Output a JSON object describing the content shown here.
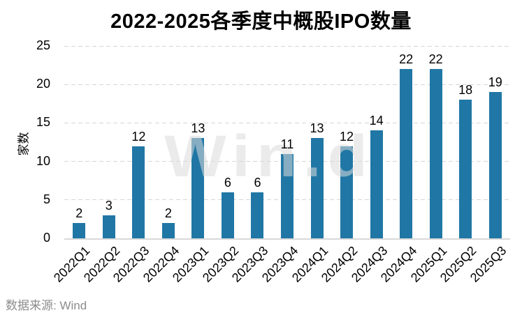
{
  "chart_data": {
    "type": "bar",
    "title": "2022-2025各季度中概股IPO数量",
    "categories": [
      "2022Q1",
      "2022Q2",
      "2022Q3",
      "2022Q4",
      "2023Q1",
      "2023Q2",
      "2023Q3",
      "2023Q4",
      "2024Q1",
      "2024Q2",
      "2024Q3",
      "2024Q4",
      "2025Q1",
      "2025Q2",
      "2025Q3"
    ],
    "values": [
      2,
      3,
      12,
      2,
      13,
      6,
      6,
      11,
      13,
      12,
      14,
      22,
      22,
      18,
      19
    ],
    "xlabel": "",
    "ylabel": "家数",
    "ylim": [
      0,
      25
    ],
    "yticks": [
      0,
      5,
      10,
      15,
      20,
      25
    ],
    "grid": "horizontal-dashed",
    "legend": "none",
    "bar_color": "#2077A5",
    "value_labels_shown": true
  },
  "watermark": "Win.d",
  "footer": {
    "source_label": "数据来源: Wind"
  }
}
